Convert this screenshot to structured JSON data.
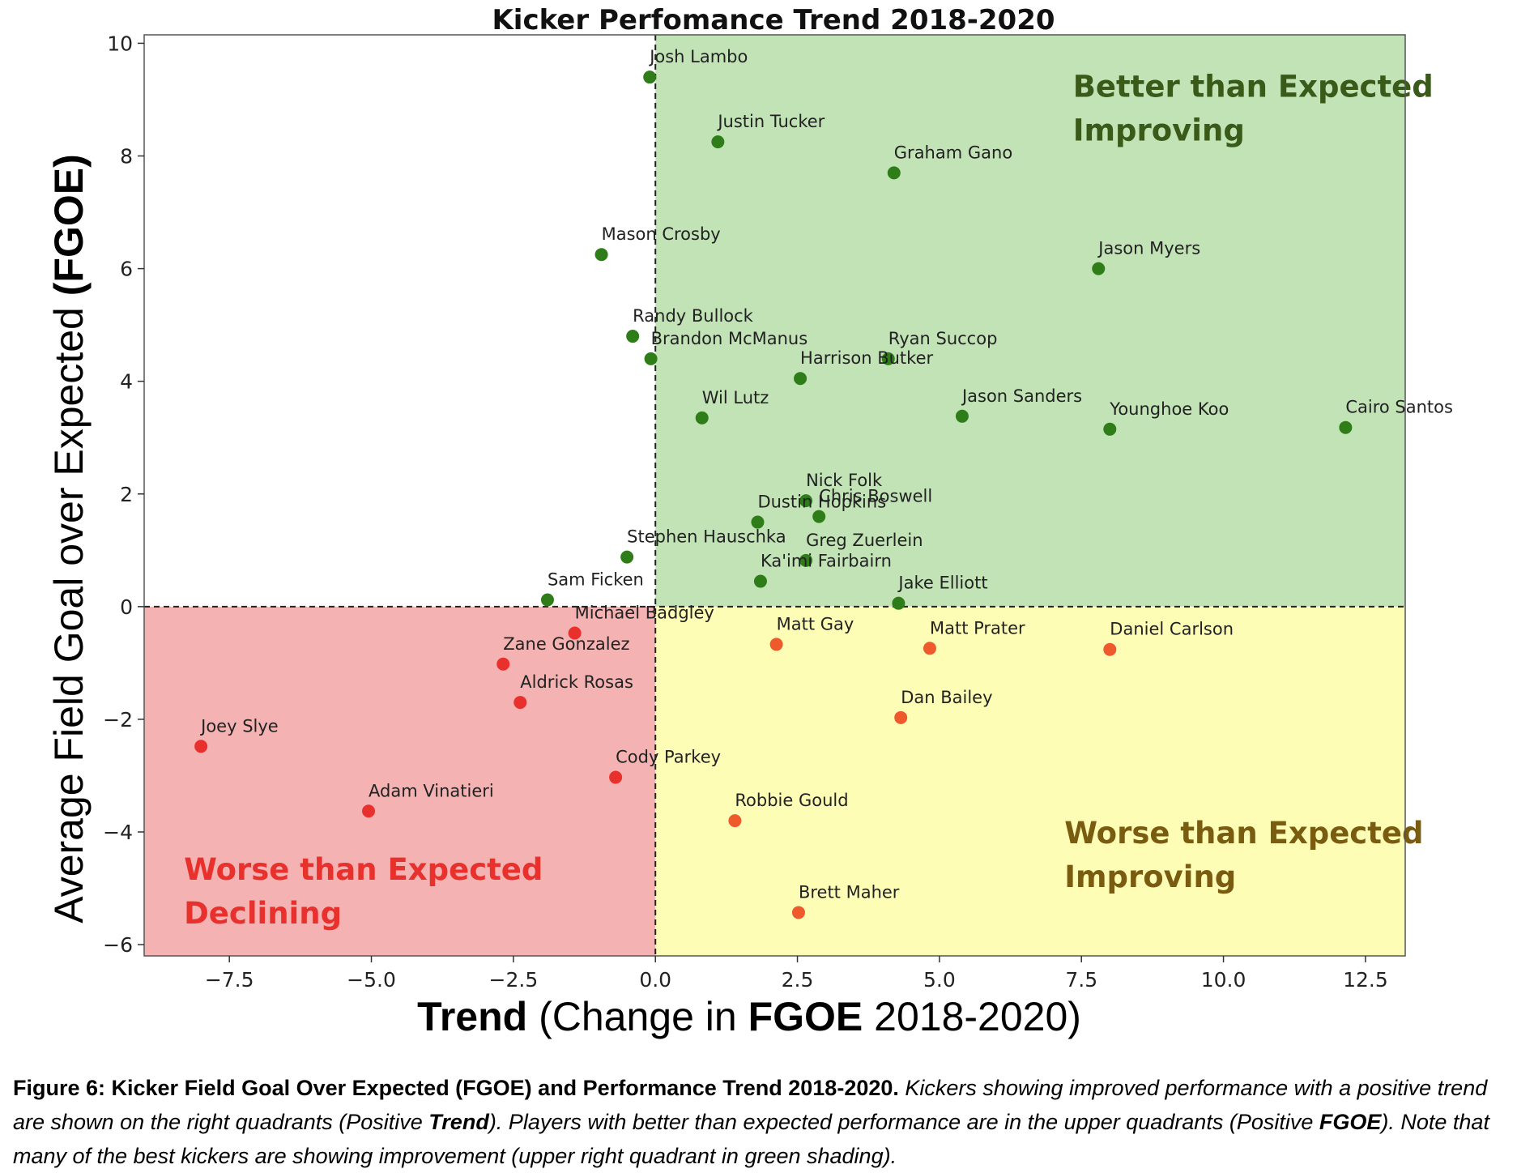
{
  "chart_data": {
    "type": "scatter",
    "title": "Kicker Perfomance Trend 2018-2020",
    "xlabel": {
      "bold1": "Trend",
      "plain1": " (Change in ",
      "bold2": "FGOE",
      "plain2": " 2018-2020)"
    },
    "ylabel": {
      "plain": "Average Field Goal over Expected ",
      "bold": "(FGOE)"
    },
    "xlim": [
      -9.0,
      13.2
    ],
    "ylim": [
      -6.2,
      10.15
    ],
    "x_ticks": [
      -7.5,
      -5.0,
      -2.5,
      0.0,
      2.5,
      5.0,
      7.5,
      10.0,
      12.5
    ],
    "x_tick_labels": [
      "−7.5",
      "−5.0",
      "−2.5",
      "0.0",
      "2.5",
      "5.0",
      "7.5",
      "10.0",
      "12.5"
    ],
    "y_ticks": [
      -6,
      -4,
      -2,
      0,
      2,
      4,
      6,
      8,
      10
    ],
    "y_tick_labels": [
      "−6",
      "−4",
      "−2",
      "0",
      "2",
      "4",
      "6",
      "8",
      "10"
    ],
    "quadrants": [
      {
        "name": "green",
        "x0": 0.0,
        "x1": 13.2,
        "y0": 0.0,
        "y1": 10.15,
        "color": "#c1e3b5",
        "label_lines": [
          "Better than Expected",
          "Improving"
        ],
        "label_color": "#3a5a1a",
        "label_anchor": [
          7.35,
          9.05
        ]
      },
      {
        "name": "yellow",
        "x0": 0.0,
        "x1": 13.2,
        "y0": -6.2,
        "y1": 0.0,
        "color": "#fefdb5",
        "label_lines": [
          "Worse than Expected",
          "Improving"
        ],
        "label_color": "#7a5c10",
        "label_anchor": [
          7.2,
          -4.2
        ]
      },
      {
        "name": "red",
        "x0": -9.0,
        "x1": 0.0,
        "y0": -6.2,
        "y1": 0.0,
        "color": "#f4b2b2",
        "label_lines": [
          "Worse than Expected",
          "Declining"
        ],
        "label_color": "#e8302c",
        "label_anchor": [
          -8.3,
          -4.85
        ]
      }
    ],
    "colors": {
      "green_point": "#2e7d18",
      "red_point": "#e8302c",
      "orange_point": "#ef5a2c",
      "dashed_line": "#222222"
    },
    "series": [
      {
        "name": "",
        "color": "#2e7d18",
        "points": [
          {
            "label": "Josh Lambo",
            "x": -0.1,
            "y": 9.4
          },
          {
            "label": "Justin Tucker",
            "x": 1.1,
            "y": 8.25
          },
          {
            "label": "Graham Gano",
            "x": 4.2,
            "y": 7.7
          },
          {
            "label": "Mason Crosby",
            "x": -0.95,
            "y": 6.25
          },
          {
            "label": "Jason Myers",
            "x": 7.8,
            "y": 6.0
          },
          {
            "label": "Randy Bullock",
            "x": -0.4,
            "y": 4.8
          },
          {
            "label": "Brandon McManus",
            "x": -0.08,
            "y": 4.4
          },
          {
            "label": "Ryan Succop",
            "x": 4.1,
            "y": 4.4
          },
          {
            "label": "Harrison Butker",
            "x": 2.55,
            "y": 4.05
          },
          {
            "label": "Wil Lutz",
            "x": 0.82,
            "y": 3.35
          },
          {
            "label": "Jason Sanders",
            "x": 5.4,
            "y": 3.38
          },
          {
            "label": "Younghoe Koo",
            "x": 8.0,
            "y": 3.15
          },
          {
            "label": "Cairo Santos",
            "x": 12.15,
            "y": 3.18
          },
          {
            "label": "Nick Folk",
            "x": 2.65,
            "y": 1.88
          },
          {
            "label": "Chris Boswell",
            "x": 2.88,
            "y": 1.6
          },
          {
            "label": "Dustin Hopkins",
            "x": 1.8,
            "y": 1.5
          },
          {
            "label": "Stephen Hauschka",
            "x": -0.5,
            "y": 0.88
          },
          {
            "label": "Greg Zuerlein",
            "x": 2.65,
            "y": 0.82
          },
          {
            "label": "Ka'imi Fairbairn",
            "x": 1.85,
            "y": 0.45
          },
          {
            "label": "Sam Ficken",
            "x": -1.9,
            "y": 0.12
          },
          {
            "label": "Jake Elliott",
            "x": 4.28,
            "y": 0.06
          }
        ]
      },
      {
        "name": "",
        "color": "#e8302c",
        "points": [
          {
            "label": "Michael Badgley",
            "x": -1.42,
            "y": -0.47
          },
          {
            "label": "Zane Gonzalez",
            "x": -2.68,
            "y": -1.02
          },
          {
            "label": "Aldrick Rosas",
            "x": -2.38,
            "y": -1.7
          },
          {
            "label": "Joey Slye",
            "x": -8.0,
            "y": -2.48
          },
          {
            "label": "Cody Parkey",
            "x": -0.7,
            "y": -3.03
          },
          {
            "label": "Adam Vinatieri",
            "x": -5.05,
            "y": -3.63
          }
        ]
      },
      {
        "name": "",
        "color": "#ef5a2c",
        "points": [
          {
            "label": "Matt Gay",
            "x": 2.13,
            "y": -0.67
          },
          {
            "label": "Matt Prater",
            "x": 4.83,
            "y": -0.74
          },
          {
            "label": "Daniel Carlson",
            "x": 8.0,
            "y": -0.76
          },
          {
            "label": "Dan Bailey",
            "x": 4.32,
            "y": -1.97
          },
          {
            "label": "Robbie Gould",
            "x": 1.4,
            "y": -3.8
          },
          {
            "label": "Brett Maher",
            "x": 2.52,
            "y": -5.43
          }
        ]
      }
    ],
    "grid": false
  },
  "caption": {
    "bold_lead": "Figure 6: Kicker Field Goal Over Expected (FGOE) and Performance Trend 2018-2020.",
    "it1": "Kickers showing improved performance with a positive trend are shown on the right quadrants (Positive ",
    "bold_it1": "Trend",
    "it2": ").  Players with better than expected performance are in the upper quadrants (Positive ",
    "bold_it2": "FGOE",
    "it3": "). Note that many of the best kickers are showing improvement (upper right quadrant in green shading)."
  }
}
